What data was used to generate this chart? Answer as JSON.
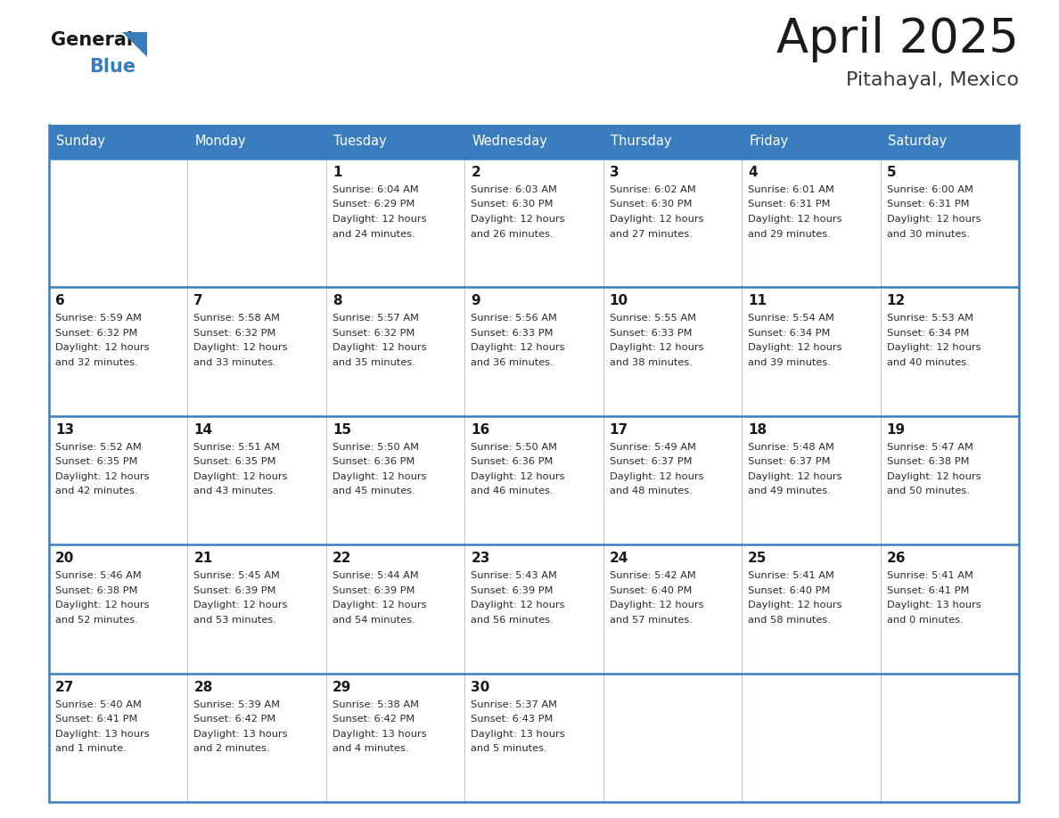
{
  "title": "April 2025",
  "subtitle": "Pitahayal, Mexico",
  "header_bg": "#3a7dbf",
  "header_text": "#ffffff",
  "day_names": [
    "Sunday",
    "Monday",
    "Tuesday",
    "Wednesday",
    "Thursday",
    "Friday",
    "Saturday"
  ],
  "cell_border_color": "#3a7dbf",
  "cell_line_color": "#b0b8c8",
  "title_color": "#1a1a1a",
  "subtitle_color": "#3a3a3a",
  "days": [
    {
      "date": 1,
      "col": 2,
      "row": 0,
      "sunrise": "6:04 AM",
      "sunset": "6:29 PM",
      "daylight": "12 hours and 24 minutes."
    },
    {
      "date": 2,
      "col": 3,
      "row": 0,
      "sunrise": "6:03 AM",
      "sunset": "6:30 PM",
      "daylight": "12 hours and 26 minutes."
    },
    {
      "date": 3,
      "col": 4,
      "row": 0,
      "sunrise": "6:02 AM",
      "sunset": "6:30 PM",
      "daylight": "12 hours and 27 minutes."
    },
    {
      "date": 4,
      "col": 5,
      "row": 0,
      "sunrise": "6:01 AM",
      "sunset": "6:31 PM",
      "daylight": "12 hours and 29 minutes."
    },
    {
      "date": 5,
      "col": 6,
      "row": 0,
      "sunrise": "6:00 AM",
      "sunset": "6:31 PM",
      "daylight": "12 hours and 30 minutes."
    },
    {
      "date": 6,
      "col": 0,
      "row": 1,
      "sunrise": "5:59 AM",
      "sunset": "6:32 PM",
      "daylight": "12 hours and 32 minutes."
    },
    {
      "date": 7,
      "col": 1,
      "row": 1,
      "sunrise": "5:58 AM",
      "sunset": "6:32 PM",
      "daylight": "12 hours and 33 minutes."
    },
    {
      "date": 8,
      "col": 2,
      "row": 1,
      "sunrise": "5:57 AM",
      "sunset": "6:32 PM",
      "daylight": "12 hours and 35 minutes."
    },
    {
      "date": 9,
      "col": 3,
      "row": 1,
      "sunrise": "5:56 AM",
      "sunset": "6:33 PM",
      "daylight": "12 hours and 36 minutes."
    },
    {
      "date": 10,
      "col": 4,
      "row": 1,
      "sunrise": "5:55 AM",
      "sunset": "6:33 PM",
      "daylight": "12 hours and 38 minutes."
    },
    {
      "date": 11,
      "col": 5,
      "row": 1,
      "sunrise": "5:54 AM",
      "sunset": "6:34 PM",
      "daylight": "12 hours and 39 minutes."
    },
    {
      "date": 12,
      "col": 6,
      "row": 1,
      "sunrise": "5:53 AM",
      "sunset": "6:34 PM",
      "daylight": "12 hours and 40 minutes."
    },
    {
      "date": 13,
      "col": 0,
      "row": 2,
      "sunrise": "5:52 AM",
      "sunset": "6:35 PM",
      "daylight": "12 hours and 42 minutes."
    },
    {
      "date": 14,
      "col": 1,
      "row": 2,
      "sunrise": "5:51 AM",
      "sunset": "6:35 PM",
      "daylight": "12 hours and 43 minutes."
    },
    {
      "date": 15,
      "col": 2,
      "row": 2,
      "sunrise": "5:50 AM",
      "sunset": "6:36 PM",
      "daylight": "12 hours and 45 minutes."
    },
    {
      "date": 16,
      "col": 3,
      "row": 2,
      "sunrise": "5:50 AM",
      "sunset": "6:36 PM",
      "daylight": "12 hours and 46 minutes."
    },
    {
      "date": 17,
      "col": 4,
      "row": 2,
      "sunrise": "5:49 AM",
      "sunset": "6:37 PM",
      "daylight": "12 hours and 48 minutes."
    },
    {
      "date": 18,
      "col": 5,
      "row": 2,
      "sunrise": "5:48 AM",
      "sunset": "6:37 PM",
      "daylight": "12 hours and 49 minutes."
    },
    {
      "date": 19,
      "col": 6,
      "row": 2,
      "sunrise": "5:47 AM",
      "sunset": "6:38 PM",
      "daylight": "12 hours and 50 minutes."
    },
    {
      "date": 20,
      "col": 0,
      "row": 3,
      "sunrise": "5:46 AM",
      "sunset": "6:38 PM",
      "daylight": "12 hours and 52 minutes."
    },
    {
      "date": 21,
      "col": 1,
      "row": 3,
      "sunrise": "5:45 AM",
      "sunset": "6:39 PM",
      "daylight": "12 hours and 53 minutes."
    },
    {
      "date": 22,
      "col": 2,
      "row": 3,
      "sunrise": "5:44 AM",
      "sunset": "6:39 PM",
      "daylight": "12 hours and 54 minutes."
    },
    {
      "date": 23,
      "col": 3,
      "row": 3,
      "sunrise": "5:43 AM",
      "sunset": "6:39 PM",
      "daylight": "12 hours and 56 minutes."
    },
    {
      "date": 24,
      "col": 4,
      "row": 3,
      "sunrise": "5:42 AM",
      "sunset": "6:40 PM",
      "daylight": "12 hours and 57 minutes."
    },
    {
      "date": 25,
      "col": 5,
      "row": 3,
      "sunrise": "5:41 AM",
      "sunset": "6:40 PM",
      "daylight": "12 hours and 58 minutes."
    },
    {
      "date": 26,
      "col": 6,
      "row": 3,
      "sunrise": "5:41 AM",
      "sunset": "6:41 PM",
      "daylight": "13 hours and 0 minutes."
    },
    {
      "date": 27,
      "col": 0,
      "row": 4,
      "sunrise": "5:40 AM",
      "sunset": "6:41 PM",
      "daylight": "13 hours and 1 minute."
    },
    {
      "date": 28,
      "col": 1,
      "row": 4,
      "sunrise": "5:39 AM",
      "sunset": "6:42 PM",
      "daylight": "13 hours and 2 minutes."
    },
    {
      "date": 29,
      "col": 2,
      "row": 4,
      "sunrise": "5:38 AM",
      "sunset": "6:42 PM",
      "daylight": "13 hours and 4 minutes."
    },
    {
      "date": 30,
      "col": 3,
      "row": 4,
      "sunrise": "5:37 AM",
      "sunset": "6:43 PM",
      "daylight": "13 hours and 5 minutes."
    }
  ]
}
